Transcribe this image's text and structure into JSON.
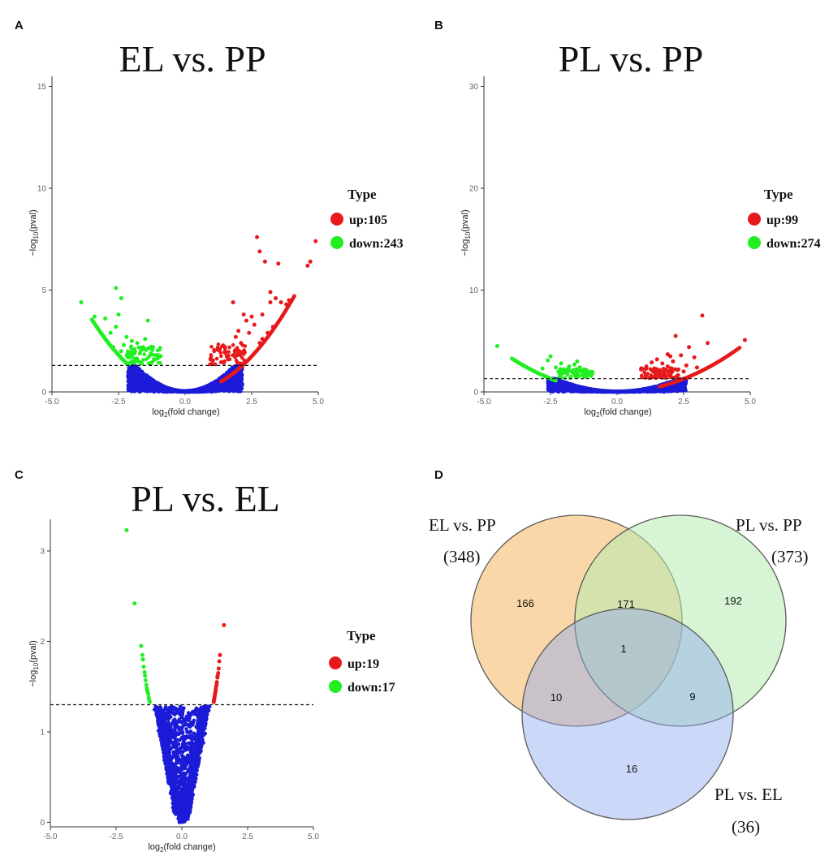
{
  "colors": {
    "up": "#e8191b",
    "down": "#22ee22",
    "ns": "#1b1bd8",
    "circle1": "#f6c27a",
    "circle2": "#b6ebb0",
    "circle3": "#8ea8ef"
  },
  "chart_data": [
    {
      "type": "scatter",
      "panel": "A",
      "title": "EL vs. PP",
      "xlabel": "log2(fold change)",
      "ylabel": "-log10(pval)",
      "xlim": [
        -5.0,
        5.0
      ],
      "ylim": [
        0,
        15.5
      ],
      "xticks": [
        "-5.0",
        "-2.5",
        "0.0",
        "2.5",
        "5.0"
      ],
      "yticks": [
        "0",
        "5",
        "10",
        "15"
      ],
      "threshold": 1.3,
      "legend": {
        "title": "Type",
        "items": [
          {
            "label": "up:105",
            "type": "up"
          },
          {
            "label": "down:243",
            "type": "down"
          }
        ]
      },
      "up": [
        [
          2.7,
          7.6
        ],
        [
          4.9,
          7.4
        ],
        [
          2.8,
          6.9
        ],
        [
          3.0,
          6.4
        ],
        [
          4.6,
          6.2
        ],
        [
          4.7,
          6.4
        ],
        [
          3.5,
          6.3
        ],
        [
          3.2,
          4.9
        ],
        [
          3.4,
          4.6
        ],
        [
          3.6,
          4.4
        ],
        [
          3.2,
          4.4
        ],
        [
          3.9,
          4.5
        ],
        [
          1.8,
          4.4
        ],
        [
          3.8,
          4.3
        ],
        [
          2.9,
          3.8
        ],
        [
          2.2,
          3.8
        ],
        [
          2.5,
          3.7
        ],
        [
          2.3,
          3.5
        ],
        [
          2.6,
          3.3
        ],
        [
          2.0,
          3.0
        ],
        [
          2.4,
          2.9
        ],
        [
          1.9,
          2.7
        ],
        [
          2.1,
          2.4
        ],
        [
          1.5,
          2.2
        ],
        [
          2.8,
          2.4
        ],
        [
          3.3,
          3.2
        ],
        [
          3.1,
          2.9
        ],
        [
          2.9,
          2.6
        ]
      ],
      "down": [
        [
          -3.9,
          4.4
        ],
        [
          -2.6,
          5.1
        ],
        [
          -2.4,
          4.6
        ],
        [
          -2.5,
          3.8
        ],
        [
          -3.0,
          3.6
        ],
        [
          -3.4,
          3.7
        ],
        [
          -2.6,
          3.2
        ],
        [
          -2.8,
          2.9
        ],
        [
          -1.4,
          3.5
        ],
        [
          -2.2,
          2.7
        ],
        [
          -2.0,
          2.5
        ],
        [
          -1.8,
          2.4
        ],
        [
          -1.5,
          2.6
        ],
        [
          -2.3,
          2.3
        ],
        [
          -1.2,
          2.2
        ],
        [
          -1.6,
          2.1
        ],
        [
          -1.1,
          1.8
        ],
        [
          -1.9,
          1.9
        ],
        [
          -2.4,
          2.0
        ],
        [
          -2.7,
          2.2
        ]
      ],
      "up_curve": {
        "x0": 1.35,
        "x1": 4.1,
        "a": 0.28,
        "n": 90
      },
      "down_curve": {
        "x0": -3.5,
        "x1": -2.15,
        "a": 0.29,
        "n": 70
      }
    },
    {
      "type": "scatter",
      "panel": "B",
      "title": "PL vs. PP",
      "xlabel": "log2(fold change)",
      "ylabel": "-log10(pval)",
      "xlim": [
        -5.0,
        5.0
      ],
      "ylim": [
        0,
        31
      ],
      "xticks": [
        "-5.0",
        "-2.5",
        "0.0",
        "2.5",
        "5.0"
      ],
      "yticks": [
        "0",
        "10",
        "20",
        "30"
      ],
      "threshold": 1.3,
      "legend": {
        "title": "Type",
        "items": [
          {
            "label": "up:99",
            "type": "up"
          },
          {
            "label": "down:274",
            "type": "down"
          }
        ]
      },
      "up": [
        [
          3.2,
          7.5
        ],
        [
          2.2,
          5.5
        ],
        [
          4.8,
          5.1
        ],
        [
          3.4,
          4.8
        ],
        [
          2.7,
          4.4
        ],
        [
          2.0,
          3.5
        ],
        [
          1.9,
          3.7
        ],
        [
          2.4,
          3.6
        ],
        [
          2.9,
          3.4
        ],
        [
          1.5,
          3.2
        ],
        [
          1.3,
          2.9
        ],
        [
          1.7,
          2.8
        ],
        [
          2.1,
          3.0
        ],
        [
          2.6,
          2.6
        ],
        [
          1.1,
          2.5
        ],
        [
          0.9,
          2.2
        ],
        [
          1.4,
          2.3
        ],
        [
          1.9,
          2.5
        ],
        [
          2.3,
          2.2
        ],
        [
          3.0,
          2.4
        ],
        [
          2.5,
          2.0
        ],
        [
          1.6,
          2.0
        ]
      ],
      "down": [
        [
          -4.5,
          4.5
        ],
        [
          -2.5,
          3.5
        ],
        [
          -2.6,
          3.1
        ],
        [
          -2.1,
          2.8
        ],
        [
          -1.5,
          3.0
        ],
        [
          -1.6,
          2.7
        ],
        [
          -1.8,
          2.5
        ],
        [
          -1.4,
          2.4
        ],
        [
          -2.3,
          2.4
        ],
        [
          -2.0,
          2.2
        ],
        [
          -1.2,
          2.2
        ],
        [
          -1.7,
          2.0
        ],
        [
          -2.8,
          2.3
        ],
        [
          -2.2,
          2.0
        ],
        [
          -1.1,
          1.8
        ]
      ],
      "up_curve": {
        "x0": 1.6,
        "x1": 4.6,
        "a": 0.205,
        "n": 70
      },
      "down_curve": {
        "x0": -3.95,
        "x1": -2.3,
        "a": 0.21,
        "n": 70
      }
    },
    {
      "type": "scatter",
      "panel": "C",
      "title": "PL vs. EL",
      "xlabel": "log2(fold change)",
      "ylabel": "-log10(pval)",
      "xlim": [
        -5.0,
        5.0
      ],
      "ylim": [
        -0.05,
        3.35
      ],
      "xticks": [
        "-5.0",
        "-2.5",
        "0.0",
        "2.5",
        "5.0"
      ],
      "yticks": [
        "0",
        "1",
        "2",
        "3"
      ],
      "threshold": 1.3,
      "legend": {
        "title": "Type",
        "items": [
          {
            "label": "up:19",
            "type": "up"
          },
          {
            "label": "down:17",
            "type": "down"
          }
        ]
      },
      "up": [
        [
          1.6,
          2.18
        ],
        [
          1.45,
          1.85
        ],
        [
          1.42,
          1.78
        ],
        [
          1.38,
          1.65
        ],
        [
          1.33,
          1.55
        ],
        [
          1.3,
          1.5
        ],
        [
          1.28,
          1.45
        ],
        [
          1.26,
          1.42
        ],
        [
          1.24,
          1.38
        ],
        [
          1.22,
          1.35
        ],
        [
          1.21,
          1.33
        ],
        [
          1.35,
          1.6
        ],
        [
          1.32,
          1.52
        ],
        [
          1.29,
          1.47
        ],
        [
          1.27,
          1.43
        ],
        [
          1.25,
          1.4
        ],
        [
          1.23,
          1.36
        ],
        [
          1.4,
          1.7
        ],
        [
          1.36,
          1.62
        ]
      ],
      "down": [
        [
          -2.1,
          3.23
        ],
        [
          -1.8,
          2.42
        ],
        [
          -1.55,
          1.95
        ],
        [
          -1.5,
          1.85
        ],
        [
          -1.48,
          1.8
        ],
        [
          -1.45,
          1.72
        ],
        [
          -1.42,
          1.66
        ],
        [
          -1.4,
          1.62
        ],
        [
          -1.38,
          1.57
        ],
        [
          -1.35,
          1.52
        ],
        [
          -1.33,
          1.48
        ],
        [
          -1.3,
          1.44
        ],
        [
          -1.28,
          1.42
        ],
        [
          -1.26,
          1.38
        ],
        [
          -1.24,
          1.35
        ],
        [
          -1.22,
          1.33
        ],
        [
          -1.32,
          1.46
        ]
      ]
    },
    {
      "type": "venn",
      "panel": "D",
      "sets": [
        {
          "name": "EL vs. PP",
          "total": "(348)"
        },
        {
          "name": "PL vs. PP",
          "total": "(373)"
        },
        {
          "name": "PL vs. EL",
          "total": "(36)"
        }
      ],
      "regions": {
        "A_only": "166",
        "B_only": "192",
        "C_only": "16",
        "AB": "171",
        "AC": "10",
        "BC": "9",
        "ABC": "1"
      }
    }
  ]
}
